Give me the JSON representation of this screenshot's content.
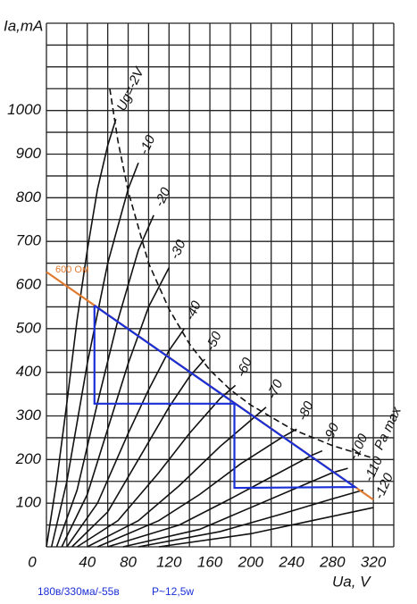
{
  "chart_data": {
    "type": "line",
    "y_label": "Ia,mA",
    "x_label": "Ua, V",
    "xlim": [
      0,
      340
    ],
    "ylim": [
      0,
      1200
    ],
    "xticks": [
      0,
      40,
      80,
      120,
      160,
      200,
      240,
      280,
      320
    ],
    "yticks": [
      100,
      200,
      300,
      400,
      500,
      600,
      700,
      800,
      900,
      1000
    ],
    "xgrid": [
      0,
      20,
      40,
      60,
      80,
      100,
      120,
      140,
      160,
      180,
      200,
      220,
      240,
      260,
      280,
      300,
      320,
      340
    ],
    "ygrid": [
      0,
      50,
      100,
      150,
      200,
      250,
      300,
      350,
      400,
      450,
      500,
      550,
      600,
      650,
      700,
      750,
      800,
      850,
      900,
      950,
      1000,
      1050,
      1100,
      1150,
      1200
    ],
    "grid": true,
    "series": [
      {
        "name": "Ug=-2V",
        "color": "#111111",
        "x": [
          0,
          10,
          20,
          30,
          40,
          50,
          60,
          68
        ],
        "values": [
          0,
          150,
          330,
          520,
          680,
          820,
          920,
          980
        ]
      },
      {
        "name": "-10",
        "color": "#111111",
        "x": [
          5,
          20,
          40,
          60,
          80,
          90
        ],
        "values": [
          0,
          150,
          420,
          650,
          820,
          880
        ]
      },
      {
        "name": "-20",
        "color": "#111111",
        "x": [
          10,
          30,
          50,
          70,
          90,
          105
        ],
        "values": [
          0,
          130,
          330,
          520,
          680,
          760
        ]
      },
      {
        "name": "-30",
        "color": "#111111",
        "x": [
          15,
          40,
          60,
          80,
          100,
          120
        ],
        "values": [
          0,
          120,
          270,
          420,
          550,
          640
        ]
      },
      {
        "name": "-40",
        "color": "#111111",
        "x": [
          20,
          50,
          80,
          100,
          120,
          135
        ],
        "values": [
          0,
          100,
          260,
          360,
          450,
          500
        ]
      },
      {
        "name": "-50",
        "color": "#111111",
        "x": [
          25,
          60,
          90,
          120,
          140,
          155
        ],
        "values": [
          0,
          80,
          200,
          320,
          390,
          430
        ]
      },
      {
        "name": "-60",
        "color": "#111111",
        "x": [
          30,
          70,
          110,
          140,
          170,
          185
        ],
        "values": [
          0,
          60,
          170,
          260,
          340,
          370
        ]
      },
      {
        "name": "-70",
        "color": "#111111",
        "x": [
          40,
          90,
          130,
          170,
          200,
          215
        ],
        "values": [
          0,
          60,
          140,
          230,
          290,
          320
        ]
      },
      {
        "name": "-80",
        "color": "#111111",
        "x": [
          50,
          110,
          150,
          190,
          230,
          245
        ],
        "values": [
          0,
          60,
          120,
          190,
          250,
          270
        ]
      },
      {
        "name": "-90",
        "color": "#111111",
        "x": [
          60,
          130,
          180,
          220,
          260,
          270
        ],
        "values": [
          0,
          50,
          110,
          160,
          210,
          220
        ]
      },
      {
        "name": "-100",
        "color": "#111111",
        "x": [
          75,
          150,
          200,
          250,
          280,
          295
        ],
        "values": [
          0,
          40,
          90,
          140,
          170,
          180
        ]
      },
      {
        "name": "-110",
        "color": "#111111",
        "x": [
          90,
          170,
          230,
          280,
          310
        ],
        "values": [
          0,
          35,
          75,
          110,
          130
        ]
      },
      {
        "name": "-120",
        "color": "#111111",
        "x": [
          110,
          200,
          260,
          300,
          320
        ],
        "values": [
          0,
          30,
          60,
          80,
          90
        ]
      },
      {
        "name": "Pa max",
        "color": "#111111",
        "dashed": true,
        "x": [
          62,
          70,
          80,
          100,
          120,
          140,
          160,
          180,
          200,
          240,
          280,
          320
        ],
        "values": [
          1050,
          930,
          815,
          650,
          545,
          465,
          405,
          360,
          325,
          270,
          232,
          203
        ]
      },
      {
        "name": "600 Ом",
        "color": "#e07a2e",
        "x": [
          0,
          320
        ],
        "values": [
          630,
          108
        ]
      },
      {
        "color": "#1a2fd6",
        "x": [
          47,
          47,
          184,
          184,
          302,
          47
        ],
        "values": [
          553,
          328,
          328,
          135,
          137,
          553
        ]
      }
    ],
    "annotations": [
      "180в/330ма/-55в",
      "P~12,5w"
    ]
  }
}
